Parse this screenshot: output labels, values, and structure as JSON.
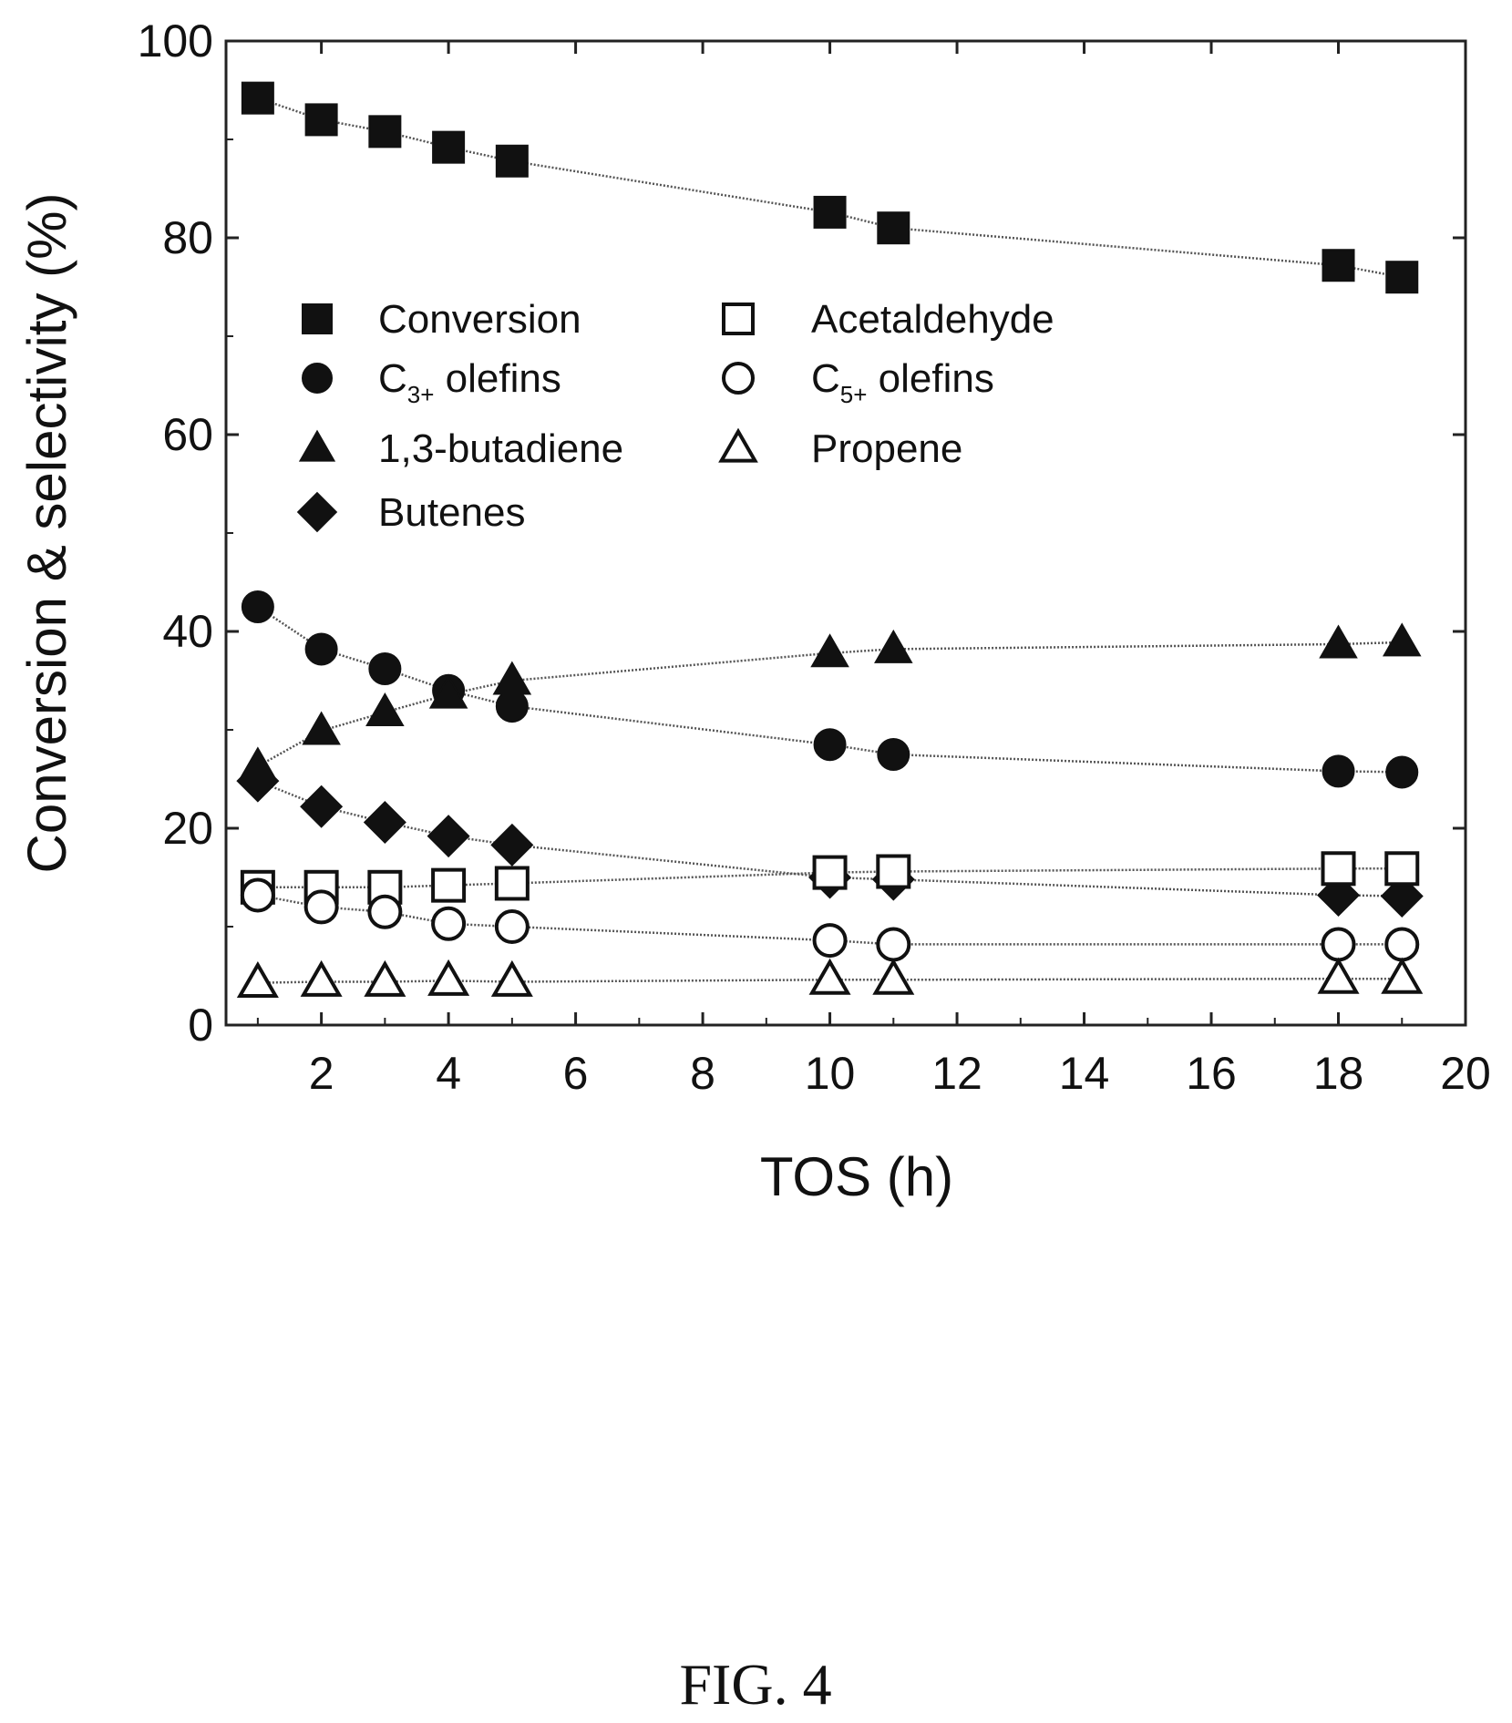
{
  "chart_data": {
    "type": "scatter",
    "xlabel": "TOS (h)",
    "ylabel": "Conversion & selectivity (%)",
    "xlim": [
      0.5,
      20
    ],
    "ylim": [
      0,
      100
    ],
    "xticks": [
      2,
      4,
      6,
      8,
      10,
      12,
      14,
      16,
      18,
      20
    ],
    "yticks": [
      0,
      20,
      40,
      60,
      80,
      100
    ],
    "grid": false,
    "legend_position": "upper-left",
    "x": [
      1,
      2,
      3,
      4,
      5,
      10,
      11,
      18,
      19
    ],
    "series": [
      {
        "name": "Conversion",
        "marker": "square",
        "filled": true,
        "color": "#111111",
        "values": [
          94.2,
          92.0,
          90.8,
          89.2,
          87.8,
          82.6,
          81.0,
          77.2,
          76.0
        ]
      },
      {
        "name": "C3+ olefins",
        "name_main": "C",
        "name_sub": "3+",
        "name_rest": " olefins",
        "marker": "circle",
        "filled": true,
        "color": "#111111",
        "values": [
          42.5,
          38.2,
          36.2,
          34.0,
          32.4,
          28.5,
          27.5,
          25.8,
          25.7
        ]
      },
      {
        "name": "1,3-butadiene",
        "marker": "triangle",
        "filled": true,
        "color": "#111111",
        "values": [
          26.3,
          29.9,
          31.8,
          33.6,
          35.0,
          37.8,
          38.2,
          38.7,
          38.9
        ]
      },
      {
        "name": "Butenes",
        "marker": "diamond",
        "filled": true,
        "color": "#111111",
        "values": [
          24.8,
          22.2,
          20.6,
          19.2,
          18.3,
          15.0,
          14.8,
          13.2,
          13.1
        ]
      },
      {
        "name": "Acetaldehyde",
        "marker": "square",
        "filled": false,
        "color": "#111111",
        "values": [
          14.0,
          14.0,
          14.0,
          14.2,
          14.4,
          15.5,
          15.6,
          15.9,
          15.9
        ]
      },
      {
        "name": "C5+ olefins",
        "name_main": "C",
        "name_sub": "5+",
        "name_rest": " olefins",
        "marker": "circle",
        "filled": false,
        "color": "#111111",
        "values": [
          13.2,
          12.0,
          11.5,
          10.3,
          10.0,
          8.6,
          8.2,
          8.2,
          8.2
        ]
      },
      {
        "name": "Propene",
        "marker": "triangle",
        "filled": false,
        "color": "#111111",
        "values": [
          4.3,
          4.4,
          4.4,
          4.5,
          4.4,
          4.6,
          4.6,
          4.7,
          4.7
        ]
      }
    ]
  },
  "caption": "FIG. 4"
}
